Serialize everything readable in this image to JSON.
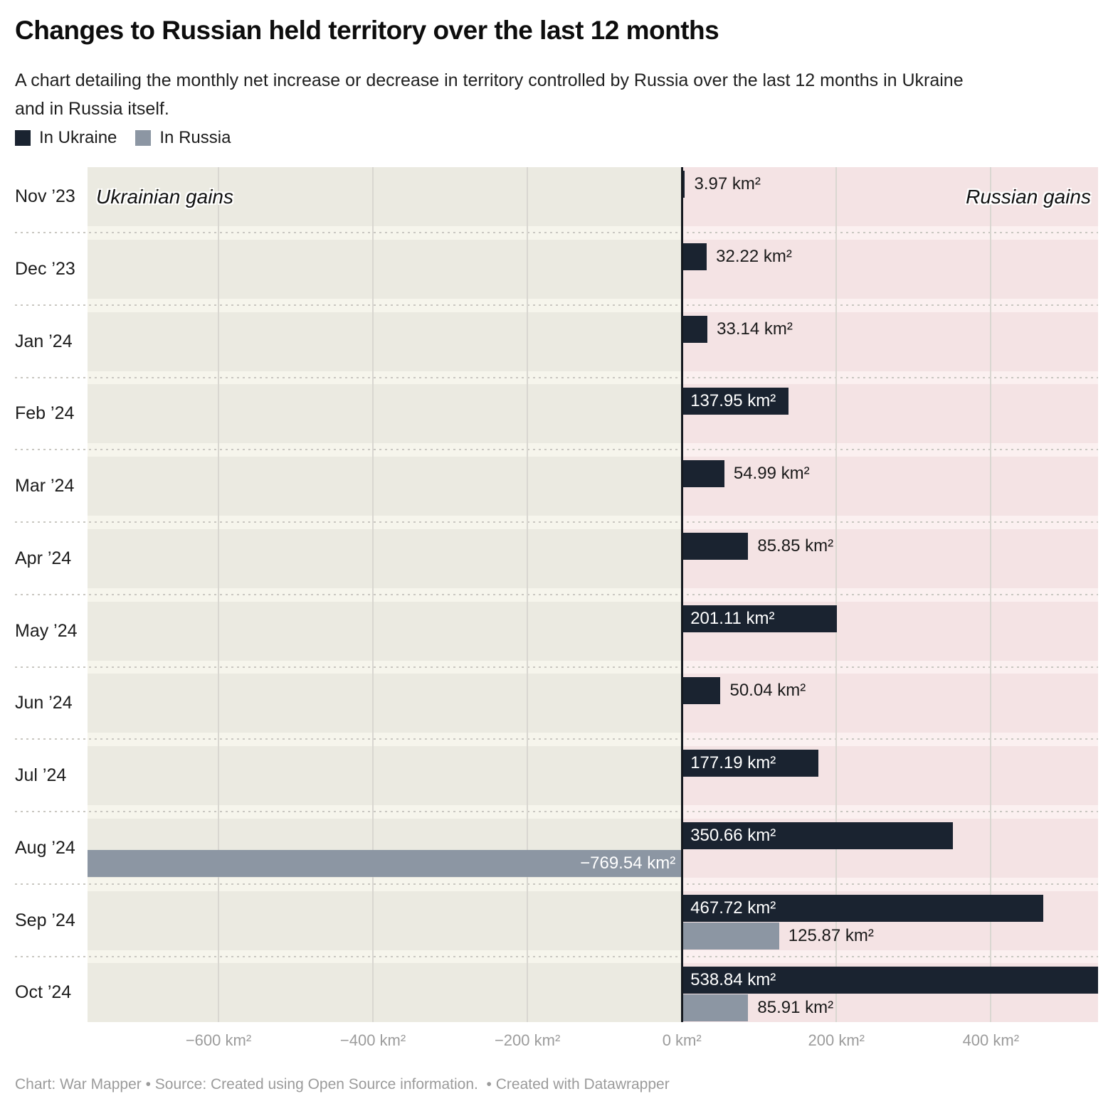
{
  "header": {
    "title": "Changes to Russian held territory over the last 12 months",
    "subtitle_lines": [
      "A chart detailing the monthly net increase or decrease in territory controlled by Russia over the last 12 months in Ukraine",
      "and in Russia itself."
    ],
    "legend": [
      {
        "label": "In Ukraine",
        "color": "#1a2330"
      },
      {
        "label": "In Russia",
        "color": "#8c96a3"
      }
    ]
  },
  "chart_data": {
    "type": "bar",
    "orientation": "horizontal-diverging",
    "unit": "km²",
    "categories": [
      "Nov ’23",
      "Dec ’23",
      "Jan ’24",
      "Feb ’24",
      "Mar ’24",
      "Apr ’24",
      "May ’24",
      "Jun ’24",
      "Jul ’24",
      "Aug ’24",
      "Sep ’24",
      "Oct ’24"
    ],
    "series": [
      {
        "name": "In Ukraine",
        "color": "#1a2330",
        "values": [
          3.97,
          32.22,
          33.14,
          137.95,
          54.99,
          85.85,
          201.11,
          50.04,
          177.19,
          350.66,
          467.72,
          538.84
        ],
        "label_inside": [
          false,
          false,
          false,
          true,
          false,
          false,
          true,
          false,
          true,
          true,
          true,
          true
        ]
      },
      {
        "name": "In Russia",
        "color": "#8c96a3",
        "values": [
          null,
          null,
          null,
          null,
          null,
          null,
          null,
          null,
          null,
          -769.54,
          125.87,
          85.91
        ],
        "label_inside": [
          null,
          null,
          null,
          null,
          null,
          null,
          null,
          null,
          null,
          true,
          false,
          false
        ]
      }
    ],
    "xlim": [
      -769.54,
      538.84
    ],
    "x_ticks": [
      -600,
      -400,
      -200,
      0,
      200,
      400
    ],
    "x_tick_labels": [
      "−600 km²",
      "−400 km²",
      "−200 km²",
      "0 km²",
      "200 km²",
      "400 km²"
    ],
    "annotations": {
      "left": "Ukrainian gains",
      "right": "Russian gains"
    },
    "zone_colors": {
      "left_band": "#ebeae1",
      "right_band": "#f4e3e4",
      "left_strip": "#f6f5ec",
      "right_strip": "#fbf0f0"
    },
    "grid": "vertical",
    "legend_position": "top-left"
  },
  "footer": {
    "text": "Chart: War Mapper • Source: Created using Open Source information.  • Created with Datawrapper"
  }
}
